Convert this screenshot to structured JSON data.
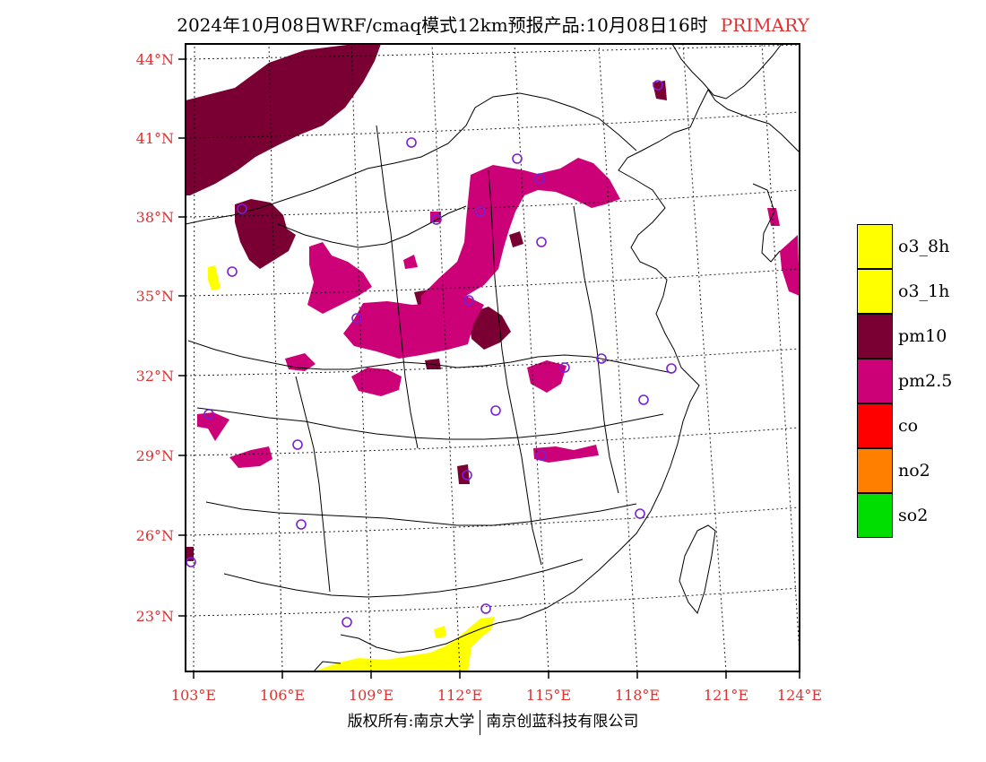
{
  "title": {
    "main": "2024年10月08日WRF/cmaq模式12km预报产品:10月08日16时",
    "tag": "PRIMARY"
  },
  "map": {
    "lat_labels": [
      "44°N",
      "41°N",
      "38°N",
      "35°N",
      "32°N",
      "29°N",
      "26°N",
      "23°N"
    ],
    "lon_labels": [
      "103°E",
      "106°E",
      "109°E",
      "112°E",
      "115°E",
      "118°E",
      "121°E",
      "124°E"
    ],
    "label_color": "#e03030",
    "station_marker_color": "#7a1fd6"
  },
  "legend": [
    {
      "label": "o3_8h",
      "color": "#ffff00"
    },
    {
      "label": "o3_1h",
      "color": "#ffff00"
    },
    {
      "label": "pm10",
      "color": "#7a0033"
    },
    {
      "label": "pm2.5",
      "color": "#cc0077"
    },
    {
      "label": "co",
      "color": "#ff0000"
    },
    {
      "label": "no2",
      "color": "#ff7f00"
    },
    {
      "label": "so2",
      "color": "#00dd00"
    }
  ],
  "copyright": {
    "left": "版权所有:南京大学",
    "right": "南京创蓝科技有限公司"
  }
}
